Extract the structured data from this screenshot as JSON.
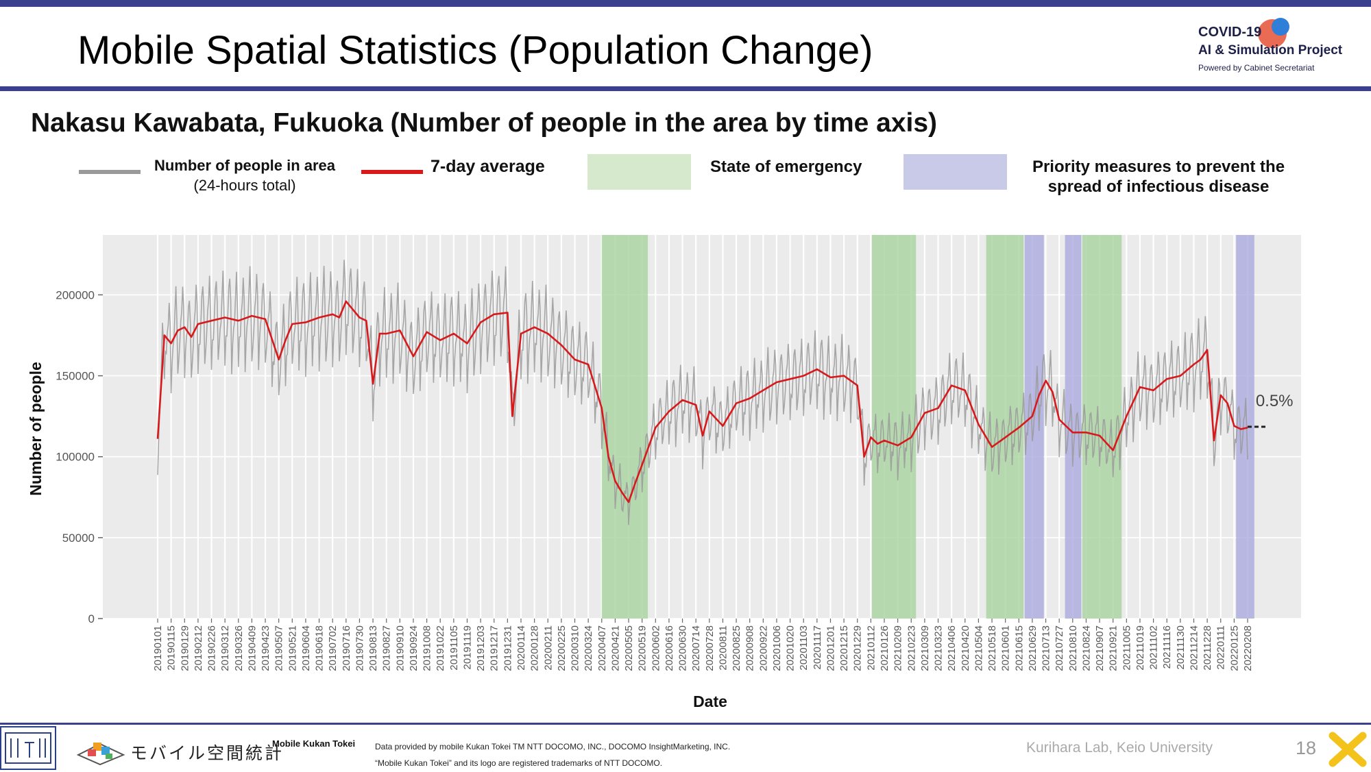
{
  "header": {
    "title": "Mobile Spatial Statistics (Population Change)",
    "logo_line1": "COVID-19",
    "logo_line2": "AI & Simulation Project",
    "logo_line3": "Powered by Cabinet Secretariat"
  },
  "subtitle": "Nakasu Kawabata, Fukuoka (Number of people in the area by time axis)",
  "legend": {
    "raw_label": "Number of people in area",
    "raw_sublabel": "(24-hours total)",
    "avg_label": "7-day average",
    "emergency_label": "State of emergency",
    "priority_label_1": "Priority measures to prevent the",
    "priority_label_2": "spread of infectious disease"
  },
  "colors": {
    "raw": "#9a9a9a",
    "avg": "#d7191c",
    "emergency": "#a9d3a0",
    "priority": "#aaaadf",
    "panel": "#ebebeb",
    "brand": "#3a3f8e"
  },
  "chart_data": {
    "type": "line",
    "xlabel": "Date",
    "ylabel": "Number of people",
    "ylim": [
      0,
      237000
    ],
    "yticks": [
      0,
      50000,
      100000,
      150000,
      200000
    ],
    "ytick_labels": [
      "0",
      "50000",
      "100000",
      "150000",
      "200000"
    ],
    "x_range": [
      "20190101",
      "20220215"
    ],
    "xtick_labels": [
      "20190101",
      "20190115",
      "20190129",
      "20190212",
      "20190226",
      "20190312",
      "20190326",
      "20190409",
      "20190423",
      "20190507",
      "20190521",
      "20190604",
      "20190618",
      "20190702",
      "20190716",
      "20190730",
      "20190813",
      "20190827",
      "20190910",
      "20190924",
      "20191008",
      "20191022",
      "20191105",
      "20191119",
      "20191203",
      "20191217",
      "20191231",
      "20200114",
      "20200128",
      "20200211",
      "20200225",
      "20200310",
      "20200324",
      "20200407",
      "20200421",
      "20200505",
      "20200519",
      "20200602",
      "20200616",
      "20200630",
      "20200714",
      "20200728",
      "20200811",
      "20200825",
      "20200908",
      "20200922",
      "20201006",
      "20201020",
      "20201103",
      "20201117",
      "20201201",
      "20201215",
      "20201229",
      "20210112",
      "20210126",
      "20210209",
      "20210223",
      "20210309",
      "20210323",
      "20210406",
      "20210420",
      "20210504",
      "20210518",
      "20210601",
      "20210615",
      "20210629",
      "20210713",
      "20210727",
      "20210810",
      "20210824",
      "20210907",
      "20210921",
      "20211005",
      "20211019",
      "20211102",
      "20211116",
      "20211130",
      "20211214",
      "20211228",
      "20220111",
      "20220125",
      "20220208"
    ],
    "grid": true,
    "series": [
      {
        "name": "7-day average",
        "x": [
          "20190101",
          "20190108",
          "20190115",
          "20190122",
          "20190129",
          "20190205",
          "20190212",
          "20190226",
          "20190312",
          "20190326",
          "20190409",
          "20190423",
          "20190507",
          "20190514",
          "20190521",
          "20190604",
          "20190618",
          "20190702",
          "20190709",
          "20190716",
          "20190730",
          "20190806",
          "20190813",
          "20190820",
          "20190827",
          "20190910",
          "20190924",
          "20191008",
          "20191022",
          "20191105",
          "20191119",
          "20191203",
          "20191217",
          "20191231",
          "20200105",
          "20200114",
          "20200128",
          "20200211",
          "20200225",
          "20200310",
          "20200324",
          "20200407",
          "20200414",
          "20200421",
          "20200428",
          "20200505",
          "20200512",
          "20200519",
          "20200602",
          "20200616",
          "20200630",
          "20200714",
          "20200721",
          "20200728",
          "20200811",
          "20200825",
          "20200908",
          "20200922",
          "20201006",
          "20201020",
          "20201103",
          "20201117",
          "20201201",
          "20201215",
          "20201229",
          "20210105",
          "20210112",
          "20210119",
          "20210126",
          "20210209",
          "20210223",
          "20210309",
          "20210323",
          "20210406",
          "20210420",
          "20210504",
          "20210518",
          "20210601",
          "20210615",
          "20210629",
          "20210706",
          "20210713",
          "20210720",
          "20210727",
          "20210810",
          "20210824",
          "20210907",
          "20210921",
          "20211005",
          "20211019",
          "20211102",
          "20211116",
          "20211130",
          "20211214",
          "20211221",
          "20211228",
          "20220104",
          "20220111",
          "20220118",
          "20220125",
          "20220201",
          "20220208"
        ],
        "y": [
          111000,
          175000,
          170000,
          178000,
          180000,
          174000,
          182000,
          184000,
          186000,
          184000,
          187000,
          185000,
          160000,
          172000,
          182000,
          183000,
          186000,
          188000,
          186000,
          196000,
          186000,
          184000,
          145000,
          176000,
          176000,
          178000,
          162000,
          177000,
          172000,
          176000,
          170000,
          183000,
          188000,
          189000,
          125000,
          176000,
          180000,
          176000,
          169000,
          160000,
          157000,
          130000,
          100000,
          85000,
          78000,
          72000,
          84000,
          95000,
          118000,
          128000,
          135000,
          132000,
          113000,
          128000,
          119000,
          133000,
          136000,
          141000,
          146000,
          148000,
          150000,
          154000,
          149000,
          150000,
          144000,
          100000,
          112000,
          108000,
          110000,
          107000,
          112000,
          127000,
          130000,
          144000,
          141000,
          120000,
          106000,
          112000,
          118000,
          125000,
          138000,
          147000,
          140000,
          123000,
          115000,
          115000,
          113000,
          104000,
          125000,
          143000,
          141000,
          148000,
          150000,
          157000,
          160000,
          166000,
          110000,
          138000,
          133000,
          119000,
          117000,
          118000
        ]
      },
      {
        "name": "Number of people in area",
        "note": "daily values oscillate weekly around the 7-day average, roughly -30000 to +25000"
      }
    ],
    "projection": {
      "from": "20220208",
      "to": "20220215",
      "value": 118500,
      "label": "0.5%"
    },
    "shaded_periods": {
      "state_of_emergency": [
        [
          "20200407",
          "20200525"
        ],
        [
          "20210113",
          "20210228"
        ],
        [
          "20210512",
          "20210620"
        ],
        [
          "20210820",
          "20210930"
        ]
      ],
      "priority_measures": [
        [
          "20210621",
          "20210711"
        ],
        [
          "20210802",
          "20210819"
        ],
        [
          "20220127",
          "20220215"
        ]
      ]
    }
  },
  "footer": {
    "app_name": "モバイル空間統計",
    "app_label": "Mobile Kukan Tokei",
    "credit_line1": "Data provided by mobile Kukan Tokei TM NTT DOCOMO, INC., DOCOMO InsightMarketing, INC.",
    "credit_line2": "“Mobile Kukan Tokei” and its logo are registered trademarks of NTT DOCOMO.",
    "lab": "Kurihara Lab, Keio University",
    "page_number": "18"
  }
}
